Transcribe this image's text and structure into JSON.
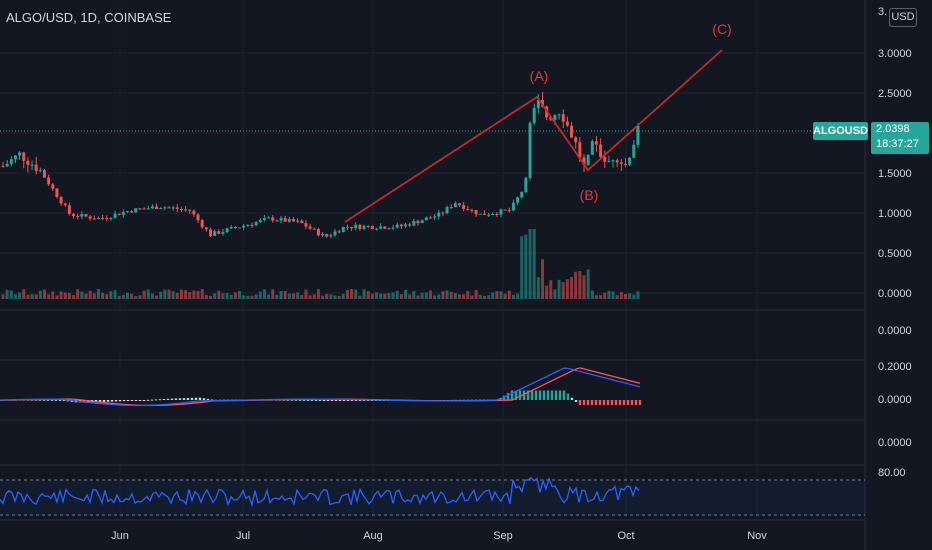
{
  "header": {
    "symbol": "ALGO/USD, 1D, COINBASE",
    "currency": "USD"
  },
  "last_price": {
    "ticker": "ALGOUSD",
    "price": "2.0398",
    "countdown": "18:37:27"
  },
  "price_scale": {
    "top_cut_label": "3.",
    "labels": [
      "3.0000",
      "2.5000",
      "2.0000",
      "1.5000",
      "1.0000",
      "0.5000",
      "0.0000"
    ]
  },
  "indicator_scales": {
    "pane2": [
      "0.0000"
    ],
    "pane3": [
      "0.2000",
      "0.0000"
    ],
    "pane4": [
      "0.0000"
    ],
    "pane5": [
      "80.00"
    ]
  },
  "time_axis": [
    "Jun",
    "Jul",
    "Aug",
    "Sep",
    "Oct",
    "Nov"
  ],
  "wave_labels": [
    "(A)",
    "(B)",
    "(C)"
  ],
  "colors": {
    "background": "#131722",
    "up": "#26a69a",
    "down": "#ef5350",
    "wave_line": "#c62828",
    "wave_text": "#e53935",
    "macd": "#2962ff",
    "signal": "#ff5252",
    "rsi": "#2962ff",
    "grid": "#1e222d"
  },
  "chart_data": {
    "type": "candlestick",
    "series": [
      {
        "name": "ALGO/USD",
        "y_range": [
          0,
          3.2
        ]
      }
    ],
    "waves": [
      {
        "label": "(A)",
        "date": "Sep 9",
        "price": 2.45
      },
      {
        "label": "(B)",
        "date": "Sep 21",
        "price": 1.55
      },
      {
        "label": "(C)",
        "date": "Oct 26",
        "price": 3.0
      }
    ],
    "x": [
      "May 3",
      "May 10",
      "May 17",
      "May 24",
      "May 31",
      "Jun 7",
      "Jun 14",
      "Jun 21",
      "Jun 28",
      "Jul 5",
      "Jul 12",
      "Jul 19",
      "Jul 26",
      "Aug 2",
      "Aug 9",
      "Aug 16",
      "Aug 23",
      "Aug 30",
      "Sep 6",
      "Sep 8",
      "Sep 13",
      "Sep 20",
      "Sep 27",
      "Oct 4"
    ],
    "close": [
      1.55,
      1.4,
      1.0,
      0.92,
      1.0,
      0.95,
      1.05,
      0.9,
      0.85,
      0.9,
      0.88,
      0.8,
      0.9,
      0.88,
      0.85,
      0.95,
      1.05,
      1.1,
      1.3,
      2.3,
      2.0,
      1.6,
      1.7,
      2.04
    ],
    "macd_range": [
      -0.1,
      0.2
    ],
    "rsi_range": [
      30,
      80
    ]
  }
}
